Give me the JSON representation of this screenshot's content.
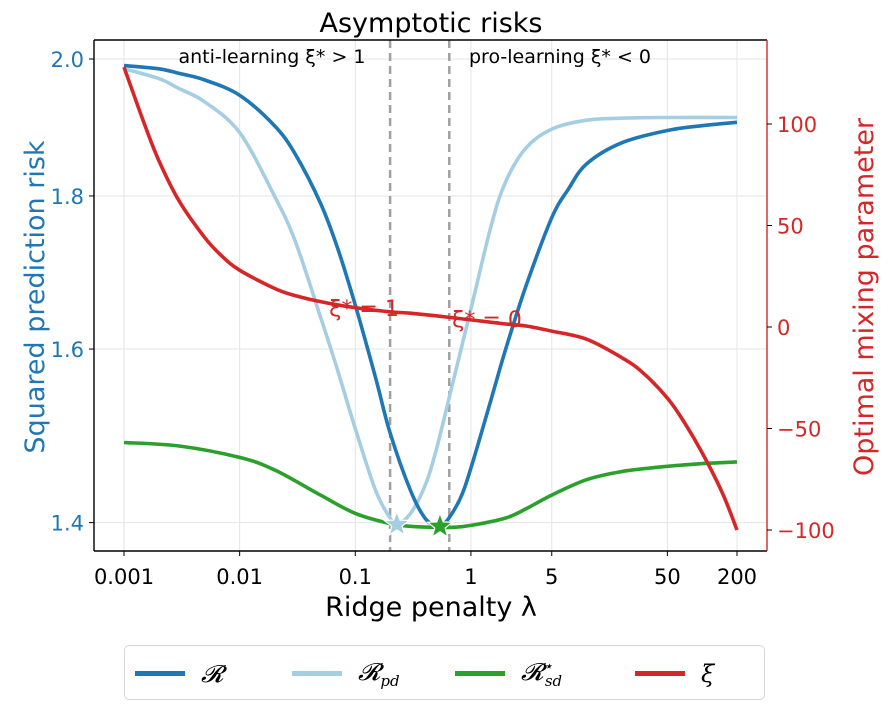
{
  "chart_data": {
    "type": "line",
    "title": "Asymptotic risks",
    "xlabel": "Ridge penalty λ",
    "ylabel_left": "Squared prediction risk",
    "ylabel_right": "Optimal mixing parameter",
    "xscale": "log",
    "yscale_left": "log",
    "xlim": [
      0.0006,
      320
    ],
    "ylim_left": [
      1.37,
      2.025
    ],
    "ylim_right": [
      -110,
      140
    ],
    "x_ticks": [
      0.001,
      0.01,
      0.1,
      1,
      5,
      50,
      200
    ],
    "x_tick_labels": [
      "0.001",
      "0.01",
      "0.1",
      "1",
      "5",
      "50",
      "200"
    ],
    "y_left_ticks": [
      2.0,
      1.8,
      1.6,
      1.4
    ],
    "y_left_tick_labels": [
      "2.0",
      "1.8",
      "1.6",
      "1.4"
    ],
    "y_right_ticks": [
      100,
      50,
      0,
      -50,
      -100
    ],
    "y_right_tick_labels": [
      "100",
      "50",
      "0",
      "−50",
      "−100"
    ],
    "grid": true,
    "legend_position": "below",
    "colors": {
      "R": "#1f77b4",
      "R_pd": "#a6cee3",
      "R_sd": "#2ca02c",
      "xi": "#d62728",
      "left_axis": "#1f77b4",
      "right_axis": "#d62728",
      "vline": "#a0a0a0",
      "grid": "#e5e5e5"
    },
    "series": [
      {
        "name": "R",
        "label": "𝓡",
        "axis": "left",
        "color": "#1f77b4",
        "x": [
          0.001,
          0.002,
          0.003,
          0.005,
          0.01,
          0.02,
          0.03,
          0.05,
          0.07,
          0.1,
          0.15,
          0.2,
          0.3,
          0.4,
          0.5,
          0.6,
          0.8,
          1,
          1.5,
          2,
          3,
          5,
          7,
          10,
          20,
          50,
          100,
          200
        ],
        "y": [
          1.99,
          1.985,
          1.978,
          1.968,
          1.945,
          1.9,
          1.86,
          1.79,
          1.73,
          1.655,
          1.565,
          1.5,
          1.435,
          1.405,
          1.397,
          1.4,
          1.425,
          1.46,
          1.54,
          1.6,
          1.68,
          1.77,
          1.81,
          1.845,
          1.875,
          1.893,
          1.9,
          1.905
        ]
      },
      {
        "name": "R_pd",
        "label": "𝓡pd",
        "axis": "left",
        "color": "#a6cee3",
        "x": [
          0.001,
          0.002,
          0.003,
          0.005,
          0.01,
          0.02,
          0.03,
          0.05,
          0.07,
          0.1,
          0.15,
          0.2,
          0.23,
          0.3,
          0.4,
          0.5,
          0.7,
          1,
          1.5,
          2,
          3,
          5,
          10,
          20,
          50,
          200
        ],
        "y": [
          1.985,
          1.97,
          1.955,
          1.935,
          1.89,
          1.8,
          1.74,
          1.64,
          1.575,
          1.505,
          1.435,
          1.405,
          1.398,
          1.41,
          1.44,
          1.48,
          1.56,
          1.65,
          1.76,
          1.82,
          1.868,
          1.895,
          1.908,
          1.911,
          1.912,
          1.912
        ]
      },
      {
        "name": "R_sd_star",
        "label": "𝓡*sd",
        "axis": "left",
        "color": "#2ca02c",
        "x": [
          0.001,
          0.003,
          0.01,
          0.02,
          0.05,
          0.1,
          0.2,
          0.3,
          0.5,
          0.7,
          1,
          2,
          3,
          5,
          10,
          20,
          50,
          100,
          200
        ],
        "y": [
          1.489,
          1.485,
          1.472,
          1.458,
          1.43,
          1.41,
          1.399,
          1.396,
          1.395,
          1.395,
          1.397,
          1.405,
          1.415,
          1.43,
          1.447,
          1.456,
          1.462,
          1.465,
          1.467
        ]
      },
      {
        "name": "xi",
        "label": "ξ",
        "axis": "right",
        "color": "#d62728",
        "x": [
          0.001,
          0.0015,
          0.002,
          0.003,
          0.005,
          0.007,
          0.01,
          0.02,
          0.03,
          0.05,
          0.1,
          0.2,
          0.3,
          0.5,
          1,
          2,
          3,
          5,
          10,
          20,
          30,
          50,
          70,
          100,
          150,
          200
        ],
        "y": [
          128,
          100,
          82,
          62,
          44,
          35,
          28,
          19,
          15.5,
          12.5,
          9.5,
          7.5,
          6.8,
          5.5,
          3.5,
          1.5,
          0.5,
          -2,
          -6,
          -15,
          -22,
          -35,
          -47,
          -62,
          -82,
          -100
        ]
      }
    ],
    "markers": [
      {
        "name": "R_pd minimum",
        "x": 0.229,
        "y": 1.398,
        "color": "#a6cee3",
        "shape": "star"
      },
      {
        "name": "R minimum",
        "x": 0.54,
        "y": 1.396,
        "color": "#2ca02c",
        "shape": "star"
      }
    ],
    "vlines": [
      {
        "x": 0.2,
        "style": "dashed",
        "color": "#a0a0a0"
      },
      {
        "x": 0.65,
        "style": "dashed",
        "color": "#a0a0a0"
      }
    ],
    "annotations": [
      {
        "text": "anti-learning ξ* > 1",
        "color": "#000000"
      },
      {
        "text": "pro-learning ξ* < 0",
        "color": "#000000"
      },
      {
        "text": "ξ* = 1",
        "color": "#d62728"
      },
      {
        "text": "ξ* = 0",
        "color": "#d62728"
      }
    ]
  },
  "legend": {
    "items": [
      {
        "label": "𝓡",
        "sub": "",
        "sup": "",
        "color": "#1f77b4"
      },
      {
        "label": "𝓡",
        "sub": "pd",
        "sup": "",
        "color": "#a6cee3"
      },
      {
        "label": "𝓡",
        "sub": "sd",
        "sup": "⋆",
        "color": "#2ca02c"
      },
      {
        "label": "ξ",
        "sub": "",
        "sup": "",
        "color": "#d62728"
      }
    ]
  }
}
